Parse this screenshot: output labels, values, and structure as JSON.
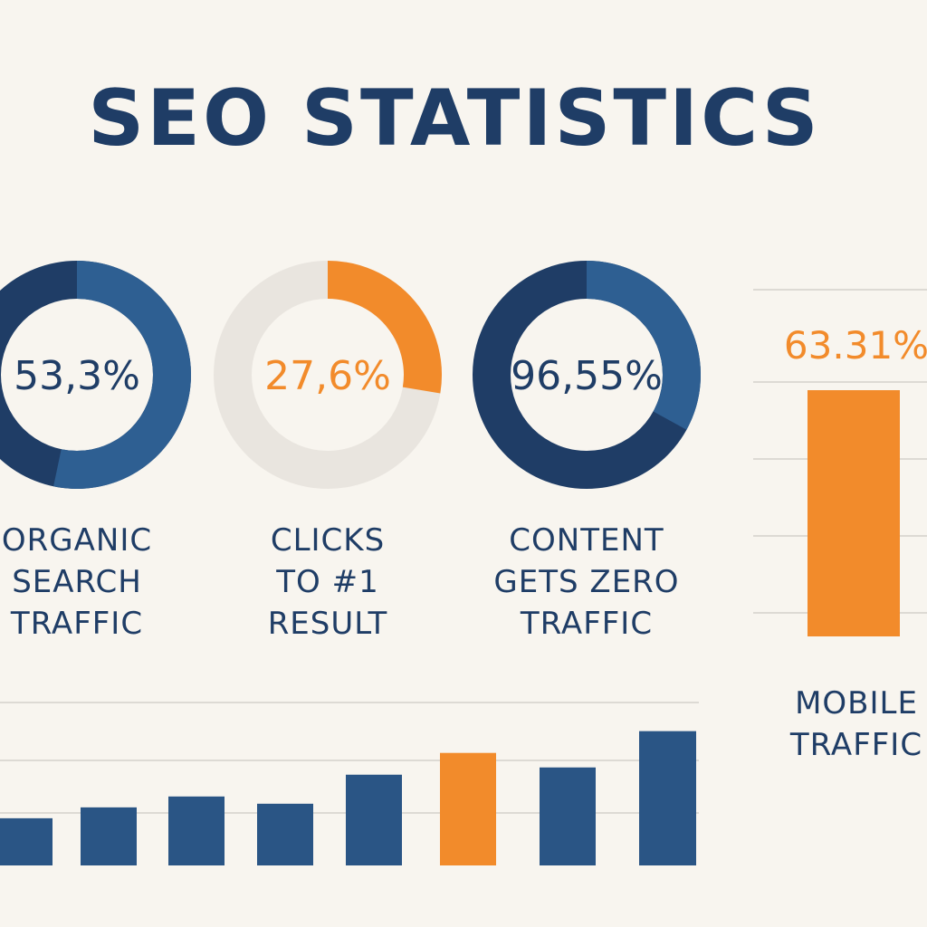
{
  "title": "SEO STATISTICS",
  "colors": {
    "background": "#f8f5ef",
    "navy": "#1f3d66",
    "blue": "#2e5f92",
    "orange": "#f28b2b",
    "light_track": "#e9e5df",
    "grid": "#dddad4"
  },
  "chart_data": [
    {
      "type": "pie",
      "value": 53.3,
      "value_label": "53,3%",
      "label_lines": [
        "ORGANIC",
        "SEARCH",
        "TRAFFIC"
      ],
      "accent": "#2e5f92",
      "track": "#1f3d66",
      "text_color": "#1f3d66"
    },
    {
      "type": "pie",
      "value": 27.6,
      "value_label": "27,6%",
      "label_lines": [
        "CLICKS",
        "TO #1",
        "RESULT"
      ],
      "accent": "#f28b2b",
      "track": "#e9e5df",
      "text_color": "#f28b2b"
    },
    {
      "type": "pie",
      "value": 96.55,
      "value_label": "96,55%",
      "label_lines": [
        "CONTENT",
        "GETS ZERO",
        "TRAFFIC"
      ],
      "accent": "#2e5f92",
      "track": "#1f3d66",
      "text_color": "#1f3d66",
      "note": "ring split drawn as in original (lighter segment on upper right)"
    },
    {
      "type": "bar",
      "value": 63.31,
      "value_label": "63.31%",
      "label_lines": [
        "MOBILE",
        "TRAFFIC"
      ],
      "ylim": [
        0,
        100
      ],
      "color": "#f28b2b"
    },
    {
      "type": "bar",
      "values": [
        13,
        16,
        19,
        17,
        25,
        31,
        27,
        37
      ],
      "highlight_index": 5,
      "ylim": [
        0,
        45
      ],
      "grid": true,
      "bar_color": "#2a5585",
      "highlight_color": "#f28b2b"
    }
  ]
}
